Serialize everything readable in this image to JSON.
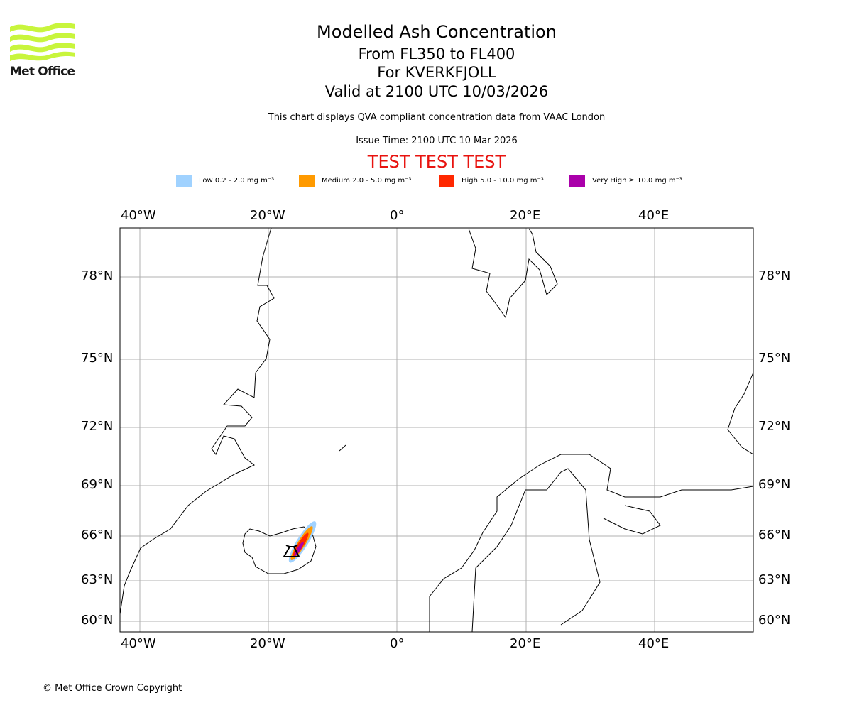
{
  "logo": {
    "text": "Met Office",
    "color": "#c8f53c"
  },
  "title": {
    "line1": "Modelled Ash Concentration",
    "line2": "From FL350 to FL400",
    "line3": "For KVERKFJOLL",
    "line4": "Valid at 2100 UTC 10/03/2026"
  },
  "description": "This chart displays QVA compliant concentration data from VAAC London",
  "issue_time": "Issue Time: 2100 UTC 10 Mar 2026",
  "test_banner": "TEST TEST TEST",
  "legend": [
    {
      "label": "Low 0.2 - 2.0 mg m⁻³",
      "color": "#a0d2ff"
    },
    {
      "label": "Medium 2.0 - 5.0 mg m⁻³",
      "color": "#ff9a00"
    },
    {
      "label": "High 5.0 - 10.0 mg m⁻³",
      "color": "#ff2800"
    },
    {
      "label": "Very High ≥ 10.0 mg m⁻³",
      "color": "#aa00aa"
    }
  ],
  "map": {
    "lon_labels": [
      "40°W",
      "20°W",
      "0°",
      "20°E",
      "40°E"
    ],
    "lat_labels": [
      "78°N",
      "75°N",
      "72°N",
      "69°N",
      "66°N",
      "63°N",
      "60°N"
    ],
    "volcano": "KVERKFJOLL"
  },
  "copyright": "© Met Office Crown Copyright"
}
